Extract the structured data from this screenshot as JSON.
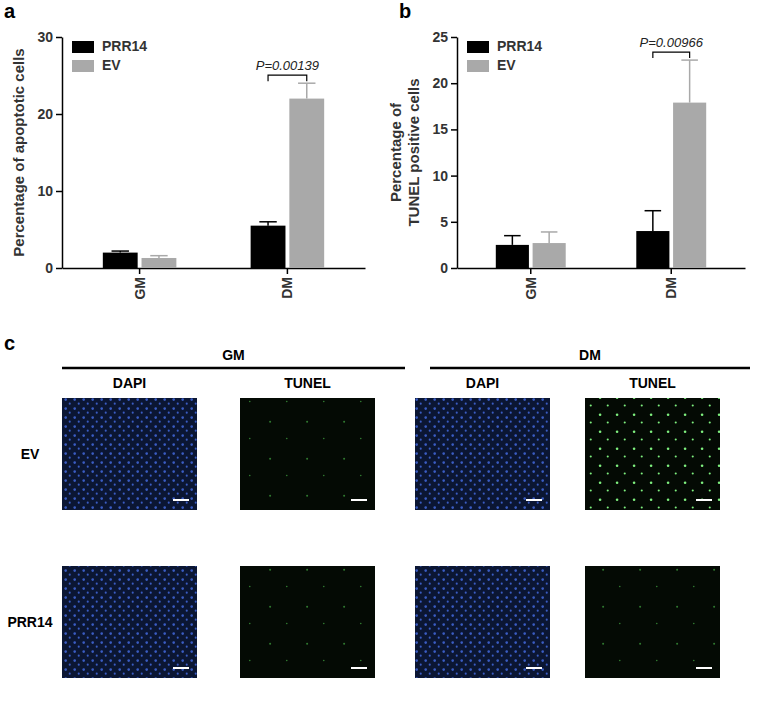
{
  "chart_data": [
    {
      "type": "bar",
      "title": "a",
      "y_label": [
        "Percentage of  apoptotic cells"
      ],
      "categories": [
        "GM",
        "DM"
      ],
      "series": [
        {
          "name": "PRR14",
          "color": "#000000",
          "values": [
            2.0,
            5.5
          ],
          "errors": [
            0.2,
            0.5
          ]
        },
        {
          "name": "EV",
          "color": "#a9a9a9",
          "values": [
            1.3,
            22.0
          ],
          "errors": [
            0.3,
            2.0
          ]
        }
      ],
      "ylim": [
        0,
        30
      ],
      "yticks": [
        0,
        10,
        20,
        30
      ],
      "legend": "top-left",
      "annotations": [
        "P=0.00139"
      ]
    },
    {
      "type": "bar",
      "title": "b",
      "y_label": [
        "Percentage of",
        "TUNEL positive cells"
      ],
      "categories": [
        "GM",
        "DM"
      ],
      "series": [
        {
          "name": "PRR14",
          "color": "#000000",
          "values": [
            2.5,
            4.0
          ],
          "errors": [
            1.0,
            2.2
          ]
        },
        {
          "name": "EV",
          "color": "#a9a9a9",
          "values": [
            2.7,
            17.9
          ],
          "errors": [
            1.2,
            4.6
          ]
        }
      ],
      "ylim": [
        0,
        25
      ],
      "yticks": [
        0,
        5,
        10,
        15,
        20,
        25
      ],
      "legend": "top-left",
      "annotations": [
        "P=0.00966"
      ]
    }
  ],
  "panel_c": {
    "label": "c",
    "groups": [
      {
        "title": "GM",
        "columns": [
          "DAPI",
          "TUNEL"
        ]
      },
      {
        "title": "DM",
        "columns": [
          "DAPI",
          "TUNEL"
        ]
      }
    ],
    "rows": [
      "EV",
      "PRR14"
    ]
  }
}
